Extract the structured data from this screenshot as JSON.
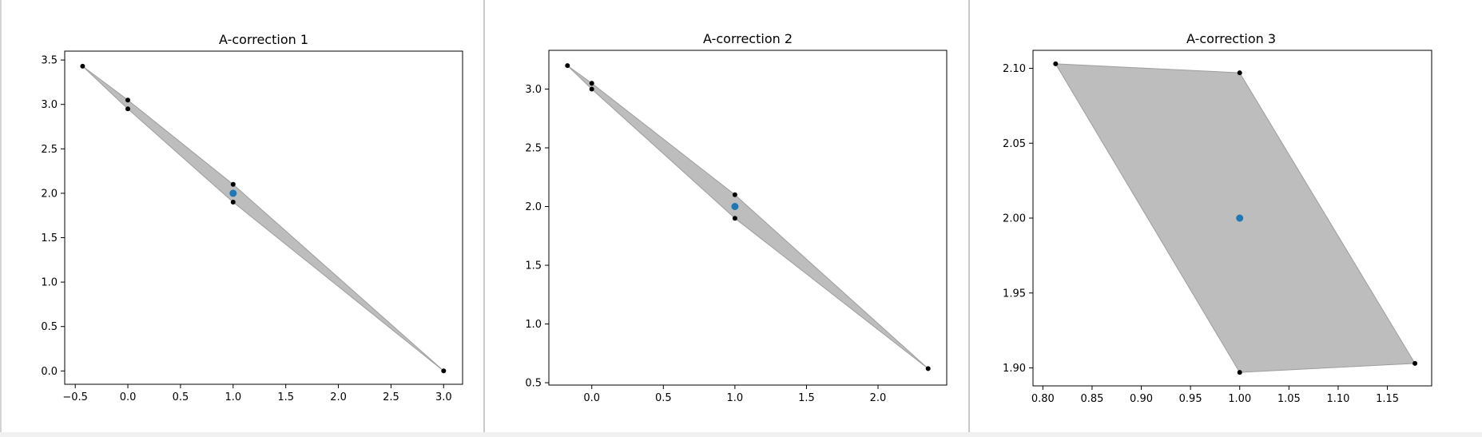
{
  "colors": {
    "hull_fill": "#bdbdbd",
    "hull_edge": "#9e9e9e",
    "vertex": "#000000",
    "center": "#1f77b4"
  },
  "chart_data": [
    {
      "type": "scatter",
      "title": "A-correction 1",
      "xlabel": "",
      "ylabel": "",
      "xlim": [
        -0.6,
        3.18
      ],
      "ylim": [
        -0.15,
        3.6
      ],
      "xticks": [
        -0.5,
        0.0,
        0.5,
        1.0,
        1.5,
        2.0,
        2.5,
        3.0
      ],
      "xtick_labels": [
        "−0.5",
        "0.0",
        "0.5",
        "1.0",
        "1.5",
        "2.0",
        "2.5",
        "3.0"
      ],
      "yticks": [
        0.0,
        0.5,
        1.0,
        1.5,
        2.0,
        2.5,
        3.0,
        3.5
      ],
      "ytick_labels": [
        "0.0",
        "0.5",
        "1.0",
        "1.5",
        "2.0",
        "2.5",
        "3.0",
        "3.5"
      ],
      "hull": [
        [
          -0.43,
          3.43
        ],
        [
          0.0,
          3.05
        ],
        [
          1.0,
          2.1
        ],
        [
          3.0,
          0.0
        ],
        [
          1.0,
          1.9
        ],
        [
          0.0,
          2.95
        ]
      ],
      "vertices": [
        [
          -0.43,
          3.43
        ],
        [
          0.0,
          3.05
        ],
        [
          0.0,
          2.95
        ],
        [
          1.0,
          2.1
        ],
        [
          1.0,
          1.9
        ],
        [
          3.0,
          0.0
        ]
      ],
      "center": [
        1.0,
        2.0
      ],
      "grid": false
    },
    {
      "type": "scatter",
      "title": "A-correction 2",
      "xlabel": "",
      "ylabel": "",
      "xlim": [
        -0.3,
        2.48
      ],
      "ylim": [
        0.48,
        3.33
      ],
      "xticks": [
        0.0,
        0.5,
        1.0,
        1.5,
        2.0
      ],
      "xtick_labels": [
        "0.0",
        "0.5",
        "1.0",
        "1.5",
        "2.0"
      ],
      "yticks": [
        0.5,
        1.0,
        1.5,
        2.0,
        2.5,
        3.0
      ],
      "ytick_labels": [
        "0.5",
        "1.0",
        "1.5",
        "2.0",
        "2.5",
        "3.0"
      ],
      "hull": [
        [
          -0.17,
          3.2
        ],
        [
          0.0,
          3.05
        ],
        [
          1.0,
          2.1
        ],
        [
          2.35,
          0.62
        ],
        [
          1.0,
          1.9
        ],
        [
          0.0,
          3.0
        ]
      ],
      "vertices": [
        [
          -0.17,
          3.2
        ],
        [
          0.0,
          3.05
        ],
        [
          0.0,
          3.0
        ],
        [
          1.0,
          2.1
        ],
        [
          1.0,
          1.9
        ],
        [
          2.35,
          0.62
        ]
      ],
      "center": [
        1.0,
        2.0
      ],
      "grid": false
    },
    {
      "type": "scatter",
      "title": "A-correction 3",
      "xlabel": "",
      "ylabel": "",
      "xlim": [
        0.79,
        1.195
      ],
      "ylim": [
        1.888,
        2.112
      ],
      "xticks": [
        0.8,
        0.85,
        0.9,
        0.95,
        1.0,
        1.05,
        1.1,
        1.15
      ],
      "xtick_labels": [
        "0.80",
        "0.85",
        "0.90",
        "0.95",
        "1.00",
        "1.05",
        "1.10",
        "1.15"
      ],
      "yticks": [
        1.9,
        1.95,
        2.0,
        2.05,
        2.1
      ],
      "ytick_labels": [
        "1.90",
        "1.95",
        "2.00",
        "2.05",
        "2.10"
      ],
      "hull": [
        [
          0.813,
          2.103
        ],
        [
          1.0,
          2.097
        ],
        [
          1.178,
          1.903
        ],
        [
          1.0,
          1.897
        ]
      ],
      "vertices": [
        [
          0.813,
          2.103
        ],
        [
          1.0,
          2.097
        ],
        [
          1.178,
          1.903
        ],
        [
          1.0,
          1.897
        ]
      ],
      "center": [
        1.0,
        2.0
      ],
      "grid": false
    }
  ]
}
